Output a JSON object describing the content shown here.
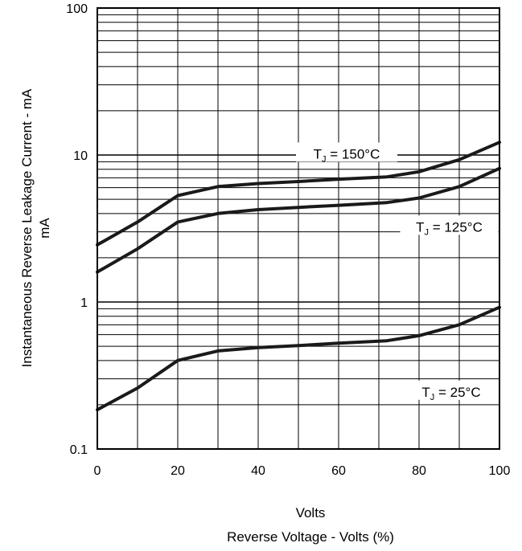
{
  "chart_data": {
    "type": "line",
    "title": "",
    "xlabel_top": "Volts",
    "xlabel": "Reverse Voltage - Volts (%)",
    "ylabel": "Instantaneous Reverse Leakage Current - mA",
    "ylabel_unit": "mA",
    "x_ticks": [
      "0",
      "20",
      "40",
      "60",
      "80",
      "100"
    ],
    "y_ticks": [
      "0.1",
      "1",
      "10",
      "100"
    ],
    "xlim": [
      0,
      100
    ],
    "ylim": [
      0.1,
      100
    ],
    "y_scale": "log",
    "grid": true,
    "series": [
      {
        "label_main": "T",
        "label_sub": "J",
        "label_rest": " = 150°C",
        "x": [
          0,
          10,
          20,
          30,
          40,
          50,
          60,
          72,
          80,
          90,
          100
        ],
        "y": [
          2.45,
          3.5,
          5.3,
          6.1,
          6.4,
          6.6,
          6.85,
          7.1,
          7.7,
          9.3,
          12.2
        ]
      },
      {
        "label_main": "T",
        "label_sub": "J",
        "label_rest": " = 125°C",
        "x": [
          0,
          10,
          20,
          30,
          40,
          50,
          60,
          72,
          80,
          90,
          100
        ],
        "y": [
          1.6,
          2.3,
          3.5,
          4.0,
          4.25,
          4.4,
          4.55,
          4.75,
          5.1,
          6.1,
          8.1
        ]
      },
      {
        "label_main": "T",
        "label_sub": "J",
        "label_rest": " = 25°C",
        "x": [
          0,
          10,
          20,
          30,
          40,
          50,
          60,
          72,
          80,
          90,
          100
        ],
        "y": [
          0.185,
          0.26,
          0.4,
          0.465,
          0.49,
          0.505,
          0.525,
          0.545,
          0.59,
          0.7,
          0.92
        ]
      }
    ]
  }
}
